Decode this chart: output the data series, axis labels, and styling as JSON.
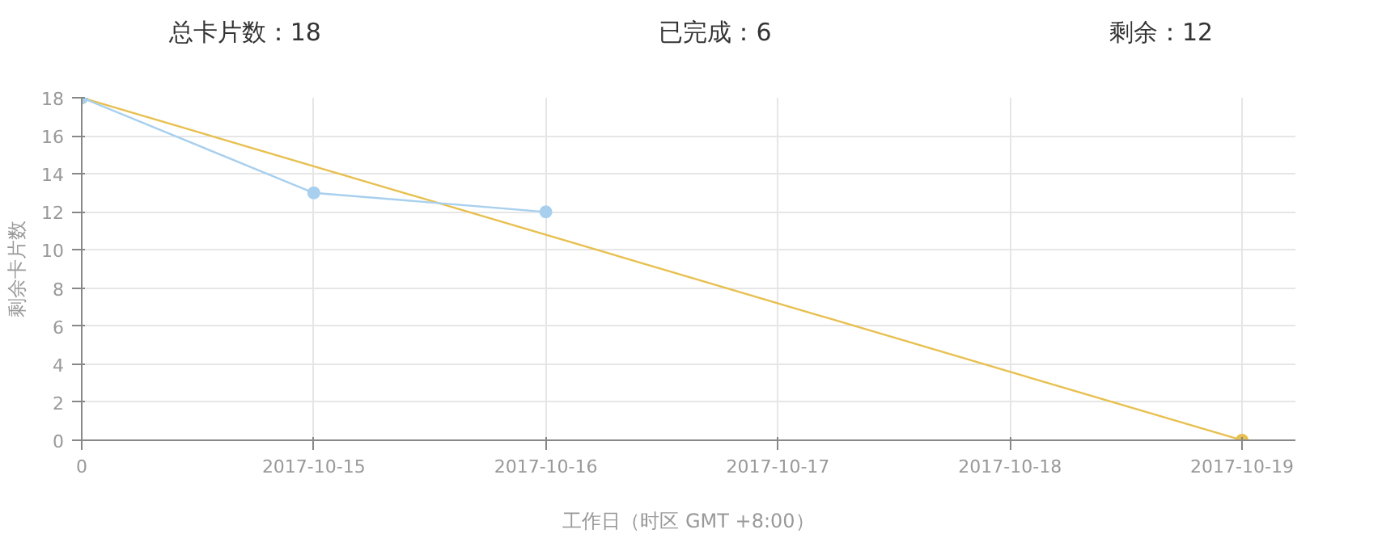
{
  "chart_data": {
    "type": "line",
    "categories": [
      "0",
      "2017-10-15",
      "2017-10-16",
      "2017-10-17",
      "2017-10-18",
      "2017-10-19"
    ],
    "series": [
      {
        "name": null,
        "color": "#e8c050",
        "values": [
          18,
          null,
          null,
          null,
          null,
          0
        ]
      },
      {
        "name": null,
        "color": "#a8d0ee",
        "values": [
          18,
          13,
          12,
          null,
          null,
          null
        ]
      }
    ],
    "xlabel": "工作日（时区 GMT +8:00）",
    "ylabel": "剩余卡片数",
    "ylim": [
      0,
      18
    ],
    "yticks": [
      0,
      2,
      4,
      6,
      8,
      10,
      12,
      14,
      16,
      18
    ],
    "annotations": [
      "总卡片数：18",
      "已完成：6",
      "剩余：12"
    ],
    "grid": true,
    "marker": "circle"
  }
}
